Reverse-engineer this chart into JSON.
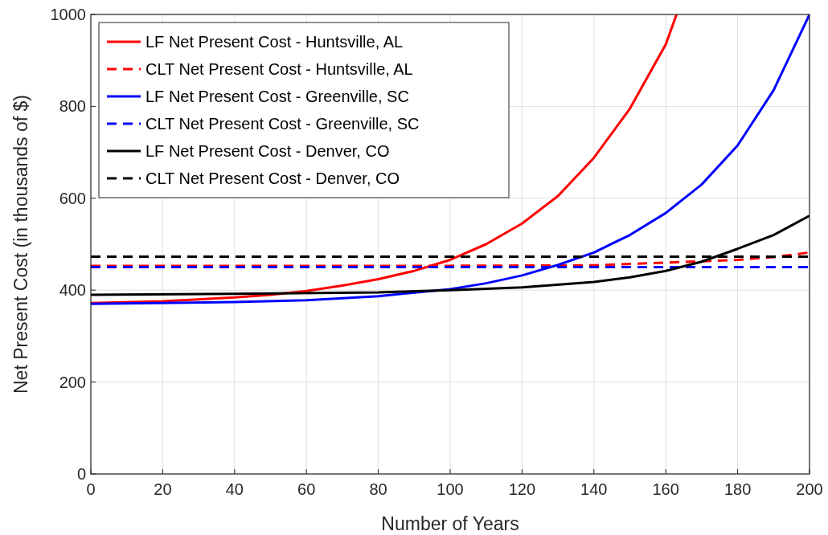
{
  "chart_data": {
    "type": "line",
    "xlabel": "Number of Years",
    "ylabel": "Net Present Cost (in thousands of $)",
    "xlim": [
      0,
      200
    ],
    "ylim": [
      0,
      1000
    ],
    "xticks": [
      0,
      20,
      40,
      60,
      80,
      100,
      120,
      140,
      160,
      180,
      200
    ],
    "yticks": [
      0,
      200,
      400,
      600,
      800,
      1000
    ],
    "grid": true,
    "legend": "top left",
    "series": [
      {
        "name": "LF Net Present Cost - Huntsville, AL",
        "color": "#ff0000",
        "line_style": "solid",
        "x": [
          0,
          20,
          40,
          50,
          60,
          70,
          80,
          90,
          100,
          110,
          120,
          130,
          140,
          150,
          160,
          163
        ],
        "values": [
          372,
          376,
          384,
          390,
          398,
          410,
          424,
          442,
          466,
          500,
          545,
          605,
          688,
          795,
          935,
          1000
        ]
      },
      {
        "name": "CLT Net Present Cost - Huntsville, AL",
        "color": "#ff0000",
        "line_style": "dashed",
        "x": [
          0,
          100,
          140,
          160,
          180,
          190,
          200
        ],
        "values": [
          453,
          453,
          454,
          460,
          466,
          472,
          482
        ]
      },
      {
        "name": "LF Net Present Cost - Greenville, SC",
        "color": "#0000ff",
        "line_style": "solid",
        "x": [
          0,
          40,
          60,
          80,
          100,
          110,
          120,
          130,
          140,
          150,
          160,
          170,
          180,
          190,
          200
        ],
        "values": [
          370,
          374,
          378,
          387,
          402,
          415,
          432,
          455,
          482,
          520,
          568,
          630,
          715,
          835,
          1000
        ]
      },
      {
        "name": "CLT Net Present Cost - Greenville, SC",
        "color": "#0000ff",
        "line_style": "dashed",
        "x": [
          0,
          200
        ],
        "values": [
          450,
          450
        ]
      },
      {
        "name": "LF Net Present Cost - Denver, CO",
        "color": "#000000",
        "line_style": "solid",
        "x": [
          0,
          40,
          80,
          100,
          120,
          140,
          150,
          160,
          170,
          180,
          190,
          200
        ],
        "values": [
          390,
          392,
          395,
          400,
          406,
          418,
          428,
          442,
          462,
          490,
          520,
          562
        ]
      },
      {
        "name": "CLT Net Present Cost - Denver, CO",
        "color": "#000000",
        "line_style": "dashed",
        "x": [
          0,
          200
        ],
        "values": [
          473,
          473
        ]
      }
    ]
  }
}
